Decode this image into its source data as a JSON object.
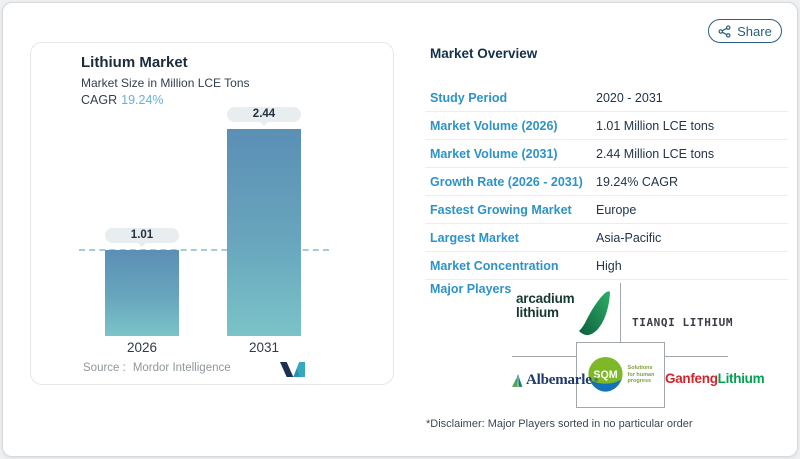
{
  "share": {
    "label": "Share"
  },
  "chart_card": {
    "title": "Lithium Market",
    "subtitle": "Market Size in Million LCE Tons",
    "cagr_label": "CAGR",
    "cagr_value": "19.24%",
    "source_label": "Source :",
    "source_value": "Mordor Intelligence"
  },
  "chart_data": {
    "type": "bar",
    "title": "Lithium Market",
    "subtitle": "Market Size in Million LCE Tons",
    "ylabel": "Million LCE Tons",
    "categories": [
      "2026",
      "2031"
    ],
    "values": [
      1.01,
      2.44
    ],
    "value_labels": [
      "1.01",
      "2.44"
    ],
    "cagr_pct": 19.24,
    "reference_line": 1.01,
    "ylim": [
      0,
      2.44
    ],
    "grid": false,
    "legend": "none",
    "bar_color_top": "#5b8fb5",
    "bar_color_bottom": "#7bc3c8",
    "reference_line_color": "#a9c9d6"
  },
  "overview": {
    "title": "Market Overview",
    "rows": [
      {
        "label": "Study Period",
        "value": "2020 - 2031"
      },
      {
        "label": "Market Volume (2026)",
        "value": "1.01 Million LCE tons"
      },
      {
        "label": "Market Volume (2031)",
        "value": "2.44 Million LCE tons"
      },
      {
        "label": "Growth Rate (2026 - 2031)",
        "value": "19.24% CAGR"
      },
      {
        "label": "Fastest Growing Market",
        "value": "Europe"
      },
      {
        "label": "Largest Market",
        "value": "Asia-Pacific"
      },
      {
        "label": "Market Concentration",
        "value": "High"
      }
    ],
    "major_players_label": "Major Players",
    "disclaimer": "*Disclaimer: Major Players sorted in no particular order"
  },
  "players": {
    "arcadium_line1": "arcadium",
    "arcadium_line2": "lithium",
    "tianqi": "TIANQI LITHIUM",
    "albemarle": "Albemarle",
    "albemarle_reg": "®",
    "sqm": "SQM",
    "sqm_tagline_l1": "Solutions",
    "sqm_tagline_l2": "for human",
    "sqm_tagline_l3": "progress",
    "ganfeng_part1": "Ganfeng",
    "ganfeng_part2": "Lithium"
  },
  "colors": {
    "label_blue": "#2d93c8",
    "value_navy": "#22354a",
    "title_navy": "#14304b",
    "cagr_accent": "#68b1d6",
    "share_teal": "#2b607c",
    "bar_top": "#5b8fb5",
    "bar_bottom": "#7bc3c8",
    "pill_bg": "#e8edf0",
    "separator": "#ebedf0",
    "grid_gray": "#a2a7ac",
    "source_gray": "#8f979c"
  }
}
